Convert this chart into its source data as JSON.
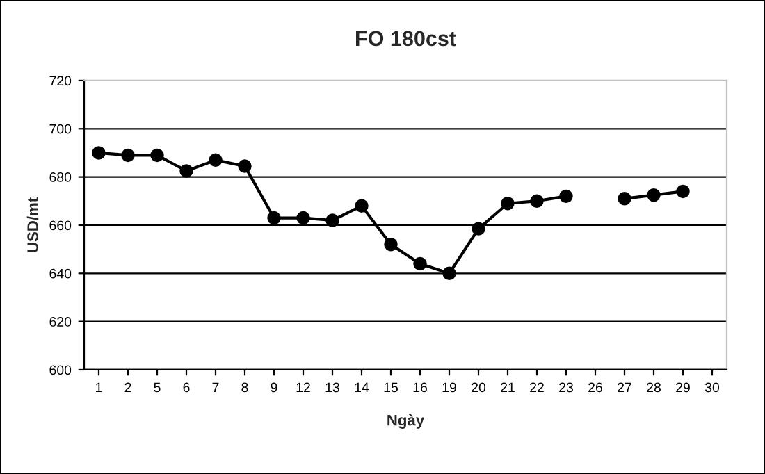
{
  "chart_data": {
    "type": "line",
    "title": "FO 180cst",
    "xlabel": "Ngày",
    "ylabel": "USD/mt",
    "categories": [
      "1",
      "2",
      "5",
      "6",
      "7",
      "8",
      "9",
      "12",
      "13",
      "14",
      "15",
      "16",
      "19",
      "20",
      "21",
      "22",
      "23",
      "26",
      "27",
      "28",
      "29",
      "30"
    ],
    "series": [
      {
        "color": "#000000",
        "values": [
          690,
          689,
          689,
          682.5,
          687,
          684.5,
          663,
          663,
          662,
          668,
          652,
          644,
          640,
          658.5,
          669,
          670,
          672,
          null,
          671,
          672.5,
          674,
          null
        ]
      }
    ],
    "ylim": [
      600,
      720
    ],
    "yticks": [
      600,
      620,
      640,
      660,
      680,
      700,
      720
    ],
    "grid": "y",
    "marker": "circle",
    "line_style": "solid",
    "legend": false
  }
}
